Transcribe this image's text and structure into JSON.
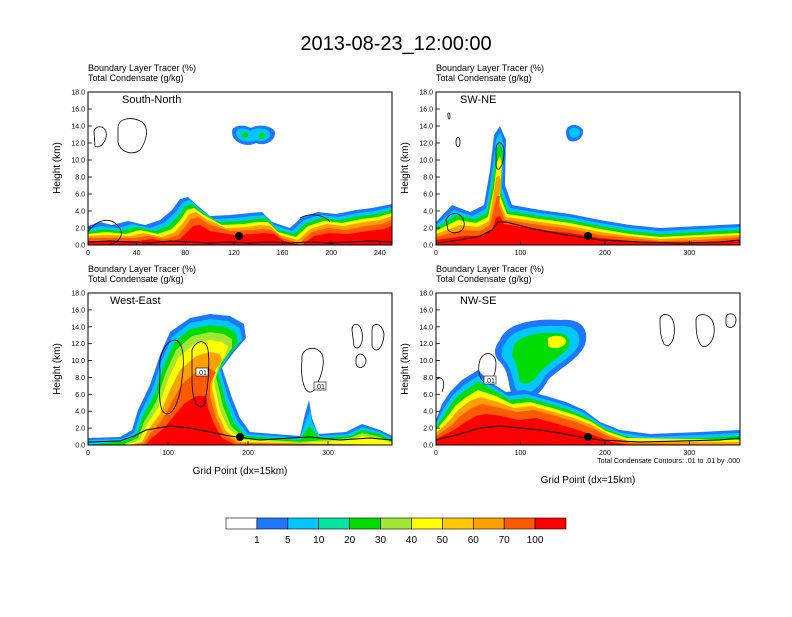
{
  "figure_title": "2013-08-23_12:00:00",
  "chart_data": {
    "type": "heatmap",
    "title": "2013-08-23_12:00:00",
    "shaded_field_label": "Boundary Layer Tracer   (%)",
    "contour_field_label": "Total Condensate   (g/kg)",
    "contour_note": "Total Condensate Contours: .01 to .01 by .000",
    "contour_value_label": ".01",
    "colorbar": {
      "levels": [
        "1",
        "5",
        "10",
        "20",
        "30",
        "40",
        "50",
        "60",
        "70",
        "100"
      ],
      "colors": [
        "#ffffff",
        "#1e78ff",
        "#00c8ff",
        "#00e6a0",
        "#00dc00",
        "#a0e632",
        "#ffff00",
        "#ffc800",
        "#ffa000",
        "#ff5a00",
        "#ff0000"
      ]
    },
    "panels": [
      {
        "name": "South-North",
        "ylabel": "Height (km)",
        "xlabel": "",
        "xlim": [
          0,
          250
        ],
        "ylim": [
          0,
          18
        ],
        "xticks": [
          "0",
          "40",
          "80",
          "120",
          "160",
          "200",
          "240"
        ],
        "yticks": [
          "0.0",
          "2.0",
          "4.0",
          "6.0",
          "8.0",
          "10.0",
          "12.0",
          "14.0",
          "16.0",
          "18.0"
        ],
        "marker_x": 125
      },
      {
        "name": "SW-NE",
        "ylabel": "Height (km)",
        "xlabel": "",
        "xlim": [
          0,
          360
        ],
        "ylim": [
          0,
          18
        ],
        "xticks": [
          "0",
          "100",
          "200",
          "300"
        ],
        "yticks": [
          "0.0",
          "2.0",
          "4.0",
          "6.0",
          "8.0",
          "10.0",
          "12.0",
          "14.0",
          "16.0",
          "18.0"
        ],
        "marker_x": 180
      },
      {
        "name": "West-East",
        "ylabel": "Height (km)",
        "xlabel": "Grid Point (dx=15km)",
        "xlim": [
          0,
          380
        ],
        "ylim": [
          0,
          18
        ],
        "xticks": [
          "0",
          "100",
          "200",
          "300"
        ],
        "yticks": [
          "0.0",
          "2.0",
          "4.0",
          "6.0",
          "8.0",
          "10.0",
          "12.0",
          "14.0",
          "16.0",
          "18.0"
        ],
        "marker_x": 185
      },
      {
        "name": "NW-SE",
        "ylabel": "Height (km)",
        "xlabel": "Grid Point (dx=15km)",
        "xlim": [
          0,
          360
        ],
        "ylim": [
          0,
          18
        ],
        "xticks": [
          "0",
          "100",
          "200",
          "300"
        ],
        "yticks": [
          "0.0",
          "2.0",
          "4.0",
          "6.0",
          "8.0",
          "10.0",
          "12.0",
          "14.0",
          "16.0",
          "18.0"
        ],
        "marker_x": 180
      }
    ]
  }
}
